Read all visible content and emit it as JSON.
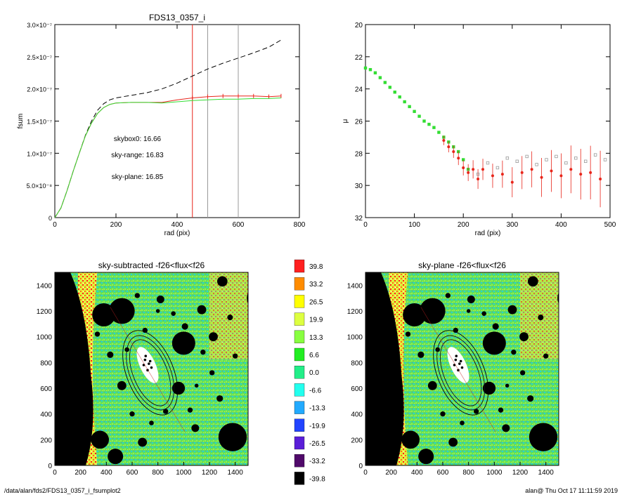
{
  "footer": {
    "path": "/data/alan/fds2/FDS13_0357_i_fsumplot2",
    "stamp": "alan@  Thu Oct 17 11:11:59 2019"
  },
  "colors": {
    "black": "#000000",
    "red": "#e8251a",
    "green": "#33dd33",
    "gray": "#999999",
    "panel_bg": "#ffffff"
  },
  "chart_data": [
    {
      "type": "line",
      "title": "FDS13_0357_i",
      "xlabel": "rad (pix)",
      "ylabel": "fsum",
      "xlim": [
        0,
        800
      ],
      "ylim": [
        0,
        3e-07
      ],
      "x_ticks": [
        0,
        200,
        400,
        600,
        800
      ],
      "y_ticks": [
        0,
        5e-08,
        1e-07,
        1.5e-07,
        2e-07,
        2.5e-07,
        3e-07
      ],
      "y_tick_labels": [
        "0",
        "5.0×10⁻⁸",
        "1.0×10⁻⁷",
        "1.5×10⁻⁷",
        "2.0×10⁻⁷",
        "2.5×10⁻⁷",
        "3.0×10⁻⁷"
      ],
      "vlines": [
        {
          "x": 450,
          "color": "red"
        },
        {
          "x": 500,
          "color": "gray"
        },
        {
          "x": 600,
          "color": "gray"
        }
      ],
      "annotations": [
        {
          "text": "skybox0: 16.66",
          "color": "black",
          "x": 270,
          "y": 1.19e-07
        },
        {
          "text": "sky-range: 16.83",
          "color": "red",
          "x": 270,
          "y": 9.4e-08
        },
        {
          "text": "sky-plane: 16.85",
          "color": "green",
          "x": 270,
          "y": 6e-08
        }
      ],
      "series": [
        {
          "color": "black",
          "dashed": true,
          "x": [
            0,
            20,
            40,
            60,
            80,
            100,
            120,
            140,
            160,
            180,
            200,
            250,
            300,
            350,
            400,
            450,
            500,
            550,
            600,
            650,
            700,
            740
          ],
          "y": [
            0,
            1.5e-08,
            4.2e-08,
            7.2e-08,
            1e-07,
            1.28e-07,
            1.5e-07,
            1.67e-07,
            1.77e-07,
            1.83e-07,
            1.86e-07,
            1.9e-07,
            1.94e-07,
            2e-07,
            2.09e-07,
            2.2e-07,
            2.31e-07,
            2.4e-07,
            2.48e-07,
            2.56e-07,
            2.65e-07,
            2.76e-07
          ]
        },
        {
          "color": "red",
          "dashed": false,
          "markers": true,
          "x": [
            0,
            20,
            40,
            60,
            80,
            100,
            120,
            140,
            160,
            180,
            200,
            250,
            300,
            350,
            400,
            450,
            500,
            550,
            600,
            650,
            700,
            740
          ],
          "y": [
            0,
            1.5e-08,
            4.2e-08,
            7.2e-08,
            1e-07,
            1.27e-07,
            1.47e-07,
            1.62e-07,
            1.71e-07,
            1.76e-07,
            1.78e-07,
            1.79e-07,
            1.79e-07,
            1.79e-07,
            1.83e-07,
            1.86e-07,
            1.88e-07,
            1.89e-07,
            1.89e-07,
            1.89e-07,
            1.88e-07,
            1.89e-07
          ]
        },
        {
          "color": "green",
          "dashed": false,
          "x": [
            0,
            20,
            40,
            60,
            80,
            100,
            120,
            140,
            160,
            180,
            200,
            250,
            300,
            350,
            400,
            450,
            500,
            550,
            600,
            650,
            700,
            740
          ],
          "y": [
            0,
            1.5e-08,
            4.2e-08,
            7.2e-08,
            1e-07,
            1.27e-07,
            1.47e-07,
            1.62e-07,
            1.71e-07,
            1.76e-07,
            1.78e-07,
            1.79e-07,
            1.79e-07,
            1.78e-07,
            1.8e-07,
            1.82e-07,
            1.83e-07,
            1.84e-07,
            1.84e-07,
            1.85e-07,
            1.85e-07,
            1.86e-07
          ]
        }
      ]
    },
    {
      "type": "scatter",
      "title": "",
      "xlabel": "rad (pix)",
      "ylabel": "μ",
      "xlim": [
        0,
        500
      ],
      "ylim": [
        32,
        20
      ],
      "x_ticks": [
        0,
        100,
        200,
        300,
        400,
        500
      ],
      "y_ticks": [
        20,
        22,
        24,
        26,
        28,
        30,
        32
      ],
      "series": [
        {
          "color": "green",
          "marker": "square",
          "x": [
            0,
            10,
            20,
            30,
            40,
            50,
            60,
            70,
            80,
            90,
            100,
            110,
            120,
            130,
            140,
            150,
            160,
            170,
            180,
            190,
            200,
            210
          ],
          "y": [
            22.7,
            22.8,
            23.0,
            23.3,
            23.6,
            23.9,
            24.2,
            24.5,
            24.8,
            25.1,
            25.4,
            25.7,
            26.0,
            26.2,
            26.4,
            26.7,
            27.0,
            27.3,
            27.6,
            27.9,
            28.4,
            29.0
          ]
        },
        {
          "color": "red",
          "marker": "dot",
          "errorbars": true,
          "x": [
            160,
            170,
            180,
            190,
            200,
            210,
            220,
            230,
            240,
            260,
            280,
            300,
            320,
            340,
            360,
            380,
            400,
            420,
            440,
            460,
            480
          ],
          "y": [
            27.2,
            27.6,
            27.9,
            28.3,
            28.9,
            29.2,
            29.0,
            29.6,
            29.0,
            29.4,
            29.3,
            29.8,
            29.2,
            29.0,
            29.5,
            29.1,
            29.4,
            29.0,
            29.3,
            29.2,
            29.6
          ]
        },
        {
          "color": "gray",
          "marker": "square",
          "x": [
            230,
            250,
            270,
            290,
            310,
            330,
            350,
            370,
            390,
            410,
            430,
            450,
            470,
            490
          ],
          "y": [
            29.3,
            28.6,
            28.9,
            28.3,
            28.5,
            28.2,
            28.7,
            28.4,
            28.2,
            28.6,
            28.3,
            28.5,
            28.1,
            28.4
          ]
        }
      ]
    },
    {
      "type": "heatmap",
      "title": "sky-subtracted -f26<flux<f26",
      "xlim": [
        0,
        1500
      ],
      "ylim": [
        0,
        1500
      ],
      "x_ticks": [
        0,
        200,
        400,
        600,
        800,
        1000,
        1200,
        1400
      ],
      "y_ticks": [
        0,
        200,
        400,
        600,
        800,
        1000,
        1200,
        1400
      ]
    },
    {
      "type": "heatmap",
      "title": "sky-plane -f26<flux<f26",
      "xlim": [
        0,
        1500
      ],
      "ylim": [
        0,
        1500
      ],
      "x_ticks": [
        0,
        200,
        400,
        600,
        800,
        1000,
        1200,
        1400
      ],
      "y_ticks": [
        0,
        200,
        400,
        600,
        800,
        1000,
        1200,
        1400
      ]
    }
  ],
  "colorbar": {
    "levels": [
      {
        "label": "39.8",
        "color": "#ff2020"
      },
      {
        "label": "33.2",
        "color": "#ff8c00"
      },
      {
        "label": "26.5",
        "color": "#ffff00"
      },
      {
        "label": "19.9",
        "color": "#ddff40"
      },
      {
        "label": "13.3",
        "color": "#88ff40"
      },
      {
        "label": "6.6",
        "color": "#22ee22"
      },
      {
        "label": "0.0",
        "color": "#22ee88"
      },
      {
        "label": "-6.6",
        "color": "#22ffee"
      },
      {
        "label": "-13.3",
        "color": "#22aaff"
      },
      {
        "label": "-19.9",
        "color": "#2244ff"
      },
      {
        "label": "-26.5",
        "color": "#5a1ed8"
      },
      {
        "label": "-33.2",
        "color": "#500a6a"
      },
      {
        "label": "-39.8",
        "color": "#000000"
      }
    ]
  }
}
